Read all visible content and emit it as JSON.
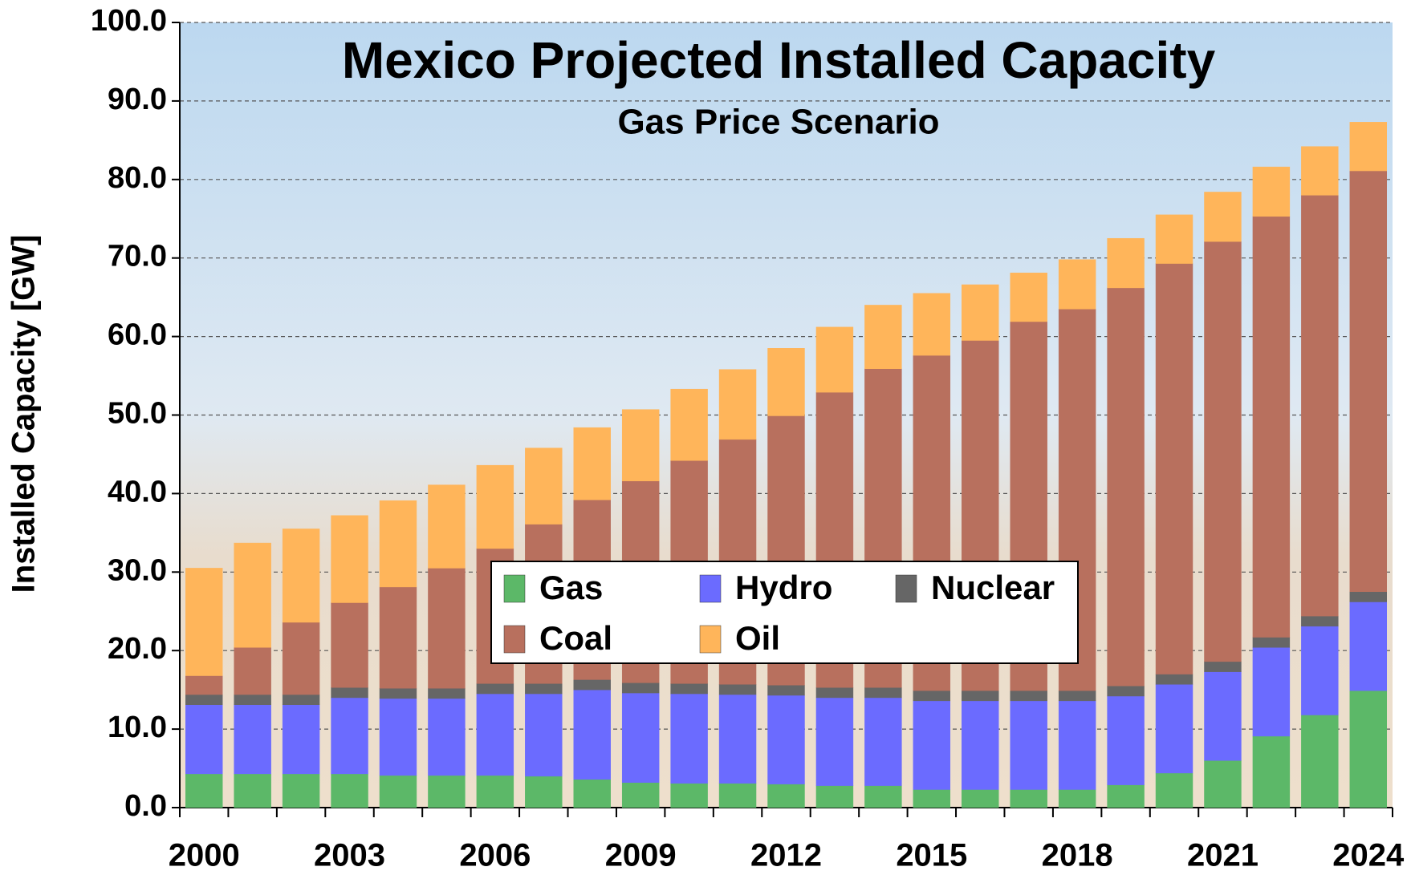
{
  "chart_data": {
    "type": "stacked-bar",
    "title": "Mexico Projected Installed Capacity",
    "subtitle": "Gas Price Scenario",
    "y_label": "Installed Capacity [GW]",
    "categories": [
      "2000",
      null,
      null,
      "2003",
      null,
      null,
      "2006",
      null,
      null,
      "2009",
      null,
      null,
      "2012",
      null,
      null,
      "2015",
      null,
      null,
      "2018",
      null,
      null,
      "2021",
      null,
      null,
      "2024"
    ],
    "series": [
      {
        "name": "Gas",
        "color": "#5cb868",
        "values": [
          4.3,
          4.3,
          4.3,
          4.3,
          4.1,
          4.1,
          4.1,
          4.0,
          3.6,
          3.2,
          3.1,
          3.1,
          3.0,
          2.8,
          2.8,
          2.3,
          2.3,
          2.3,
          2.3,
          2.9,
          4.4,
          6.0,
          9.1,
          11.8,
          14.9
        ]
      },
      {
        "name": "Hydro",
        "color": "#6b6bff",
        "values": [
          8.8,
          8.8,
          8.8,
          9.7,
          9.8,
          9.8,
          10.4,
          10.5,
          11.4,
          11.4,
          11.4,
          11.3,
          11.3,
          11.2,
          11.2,
          11.3,
          11.3,
          11.3,
          11.3,
          11.3,
          11.3,
          11.3,
          11.3,
          11.3,
          11.3
        ]
      },
      {
        "name": "Nuclear",
        "color": "#666666",
        "values": [
          1.3,
          1.3,
          1.3,
          1.3,
          1.3,
          1.3,
          1.3,
          1.3,
          1.3,
          1.3,
          1.3,
          1.3,
          1.3,
          1.3,
          1.3,
          1.3,
          1.3,
          1.3,
          1.3,
          1.3,
          1.3,
          1.3,
          1.3,
          1.3,
          1.3
        ]
      },
      {
        "name": "Coal",
        "color": "#b8705e",
        "values": [
          2.4,
          6.0,
          9.2,
          10.8,
          12.9,
          15.3,
          17.2,
          20.3,
          22.9,
          25.7,
          28.4,
          31.2,
          34.3,
          37.6,
          40.6,
          42.7,
          44.6,
          47.0,
          48.6,
          50.7,
          52.3,
          53.5,
          53.6,
          53.6,
          53.6
        ]
      },
      {
        "name": "Oil",
        "color": "#ffb55a",
        "values": [
          13.7,
          13.3,
          11.9,
          11.1,
          11.0,
          10.6,
          10.6,
          9.7,
          9.2,
          9.1,
          9.1,
          8.9,
          8.6,
          8.3,
          8.1,
          7.9,
          7.1,
          6.2,
          6.3,
          6.3,
          6.2,
          6.3,
          6.3,
          6.2,
          6.2
        ]
      }
    ],
    "ylim": [
      0,
      100
    ],
    "yticks": [
      {
        "value": 0,
        "label": "0.0"
      },
      {
        "value": 10,
        "label": "10.0"
      },
      {
        "value": 20,
        "label": "20.0"
      },
      {
        "value": 30,
        "label": "30.0"
      },
      {
        "value": 40,
        "label": "40.0"
      },
      {
        "value": 50,
        "label": "50.0"
      },
      {
        "value": 60,
        "label": "60.0"
      },
      {
        "value": 70,
        "label": "70.0"
      },
      {
        "value": 80,
        "label": "80.0"
      },
      {
        "value": 90,
        "label": "90.0"
      },
      {
        "value": 100,
        "label": "100.0"
      }
    ],
    "grid": true
  }
}
